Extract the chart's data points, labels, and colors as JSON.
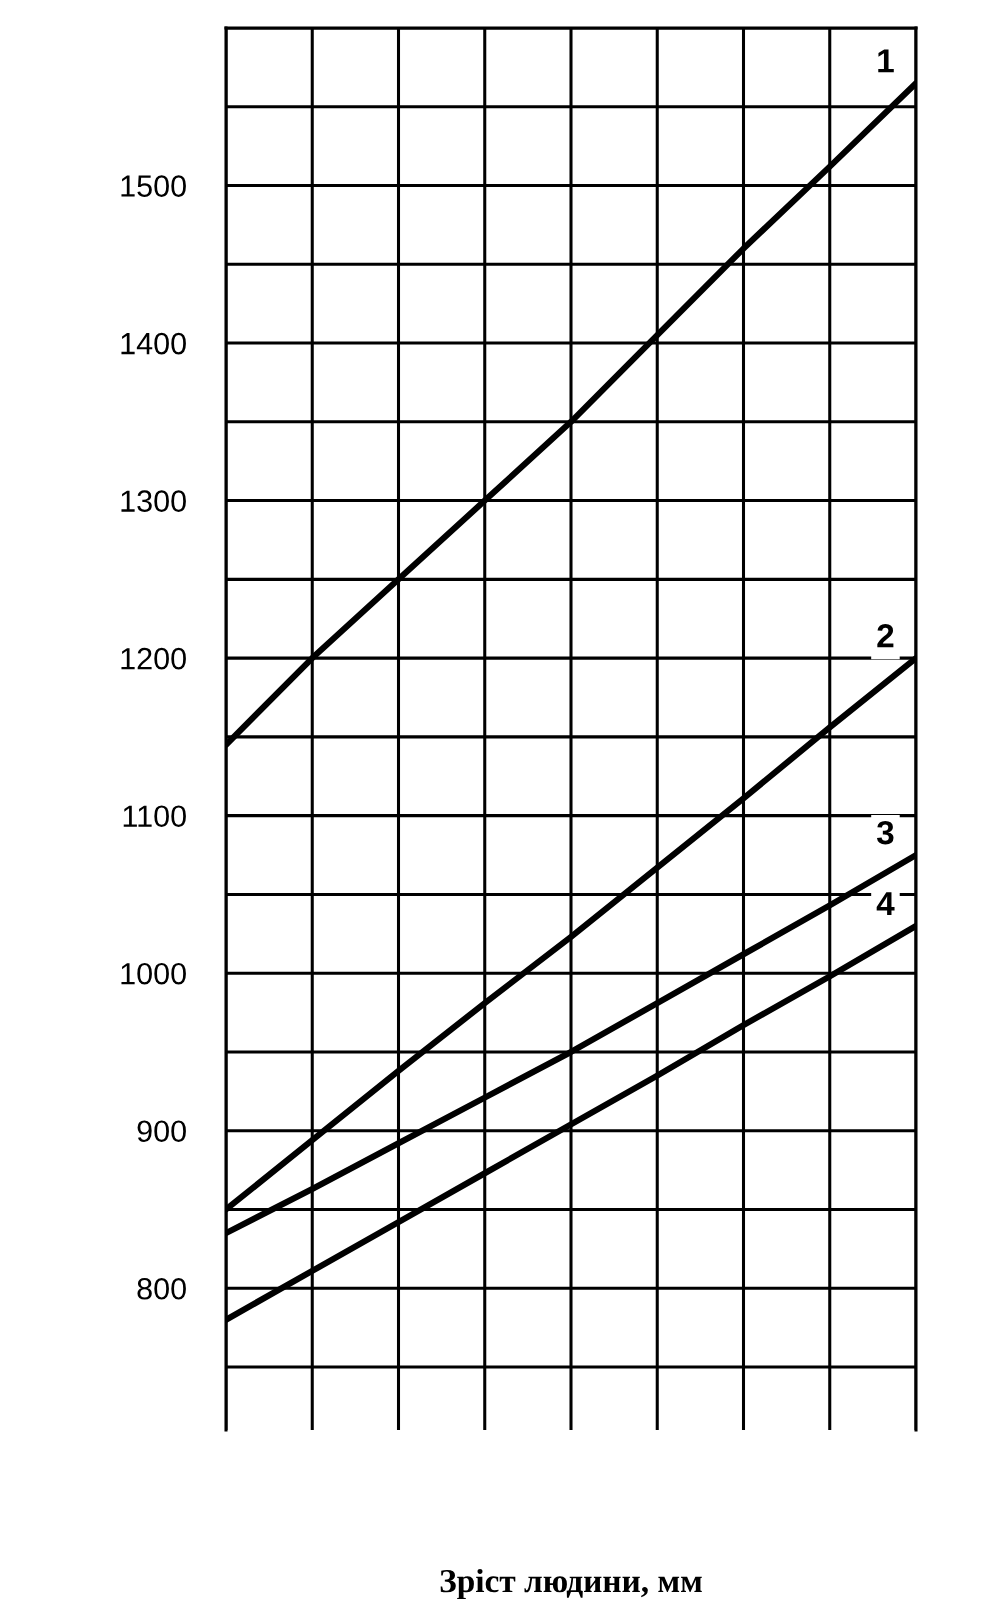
{
  "chart_data": {
    "type": "line",
    "xlabel": "Зріст людини, мм",
    "categories": [
      null,
      null,
      null,
      null,
      null,
      null,
      null,
      null,
      null
    ],
    "series": [
      {
        "name": "1",
        "color": "#000000",
        "values": [
          1145,
          1200,
          1250,
          1300,
          1350,
          1405,
          1460,
          1512,
          1565
        ]
      },
      {
        "name": "2",
        "color": "#000000",
        "values": [
          850,
          894,
          938,
          981,
          1023,
          1067,
          1111,
          1156,
          1200
        ]
      },
      {
        "name": "3",
        "color": "#000000",
        "values": [
          835,
          863,
          892,
          921,
          950,
          981,
          1012,
          1043,
          1075
        ]
      },
      {
        "name": "4",
        "color": "#000000",
        "values": [
          780,
          811,
          842,
          873,
          904,
          935,
          967,
          998,
          1030
        ]
      }
    ],
    "ylim": [
      710,
      1600
    ],
    "yticks": [
      {
        "value": 750,
        "label": null
      },
      800,
      {
        "value": 850,
        "label": null
      },
      900,
      {
        "value": 950,
        "label": null
      },
      1000,
      {
        "value": 1050,
        "label": null
      },
      1100,
      {
        "value": 1150,
        "label": null
      },
      1200,
      {
        "value": 1250,
        "label": null
      },
      1300,
      {
        "value": 1350,
        "label": null
      },
      1400,
      {
        "value": 1450,
        "label": null
      },
      1500,
      {
        "value": 1550,
        "label": null
      },
      {
        "value": 1600,
        "label": null
      }
    ],
    "grid": true,
    "marker": "none",
    "line_style": "solid",
    "legend": false
  }
}
